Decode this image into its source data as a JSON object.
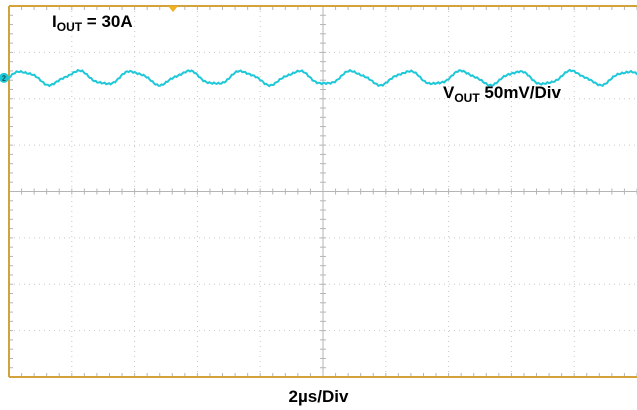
{
  "chart_data": {
    "type": "line",
    "title": "",
    "xlabel": "2µs/Div",
    "ylabel": "",
    "grid": true,
    "grid_divisions": {
      "x": 10,
      "y": 8
    },
    "channel_marker": "2",
    "colors": {
      "grid": "#c7c7c7",
      "trace": "#1ec8d8",
      "frame": "#d4a23a",
      "trigger": "#f0b020"
    },
    "annotations": [
      {
        "id": "iout",
        "text_main": "I",
        "text_sub": "OUT",
        "text_rest": " = 30A"
      },
      {
        "id": "vout",
        "text_main": "V",
        "text_sub": "OUT",
        "text_rest": " 50mV/Div"
      }
    ],
    "series": [
      {
        "x_unit": "µs",
        "y_unit": "mV",
        "offset_div": 0.85,
        "ripple_period_us": 1.75,
        "ripple_amplitude_mV": 7,
        "values": [
          {
            "x": 0.0,
            "y": 0
          },
          {
            "x": 0.44,
            "y": 7
          },
          {
            "x": 0.88,
            "y": 0
          },
          {
            "x": 1.31,
            "y": -7
          },
          {
            "x": 1.75,
            "y": 0
          },
          {
            "x": 2.19,
            "y": 7
          },
          {
            "x": 2.63,
            "y": 0
          },
          {
            "x": 3.06,
            "y": -7
          },
          {
            "x": 3.5,
            "y": 0
          },
          {
            "x": 3.94,
            "y": 7
          },
          {
            "x": 4.38,
            "y": 0
          },
          {
            "x": 4.81,
            "y": -7
          },
          {
            "x": 5.25,
            "y": 0
          },
          {
            "x": 5.69,
            "y": 7
          },
          {
            "x": 6.13,
            "y": 0
          },
          {
            "x": 6.56,
            "y": -7
          },
          {
            "x": 7.0,
            "y": 0
          },
          {
            "x": 7.44,
            "y": 7
          },
          {
            "x": 7.88,
            "y": 0
          },
          {
            "x": 8.31,
            "y": -7
          },
          {
            "x": 8.75,
            "y": 0
          },
          {
            "x": 9.19,
            "y": 7
          },
          {
            "x": 9.63,
            "y": 0
          },
          {
            "x": 10.06,
            "y": -7
          },
          {
            "x": 10.5,
            "y": 0
          },
          {
            "x": 10.94,
            "y": 7
          },
          {
            "x": 11.38,
            "y": 0
          },
          {
            "x": 11.81,
            "y": -7
          },
          {
            "x": 12.25,
            "y": 0
          },
          {
            "x": 12.69,
            "y": 7
          },
          {
            "x": 13.13,
            "y": 0
          },
          {
            "x": 13.56,
            "y": -7
          },
          {
            "x": 14.0,
            "y": 0
          },
          {
            "x": 14.44,
            "y": 7
          },
          {
            "x": 14.88,
            "y": 0
          },
          {
            "x": 15.31,
            "y": -7
          },
          {
            "x": 15.75,
            "y": 0
          },
          {
            "x": 16.19,
            "y": 7
          },
          {
            "x": 16.63,
            "y": 0
          },
          {
            "x": 17.06,
            "y": -7
          },
          {
            "x": 17.5,
            "y": 0
          },
          {
            "x": 17.94,
            "y": 7
          },
          {
            "x": 18.38,
            "y": 0
          },
          {
            "x": 18.81,
            "y": -7
          },
          {
            "x": 19.25,
            "y": 0
          },
          {
            "x": 19.69,
            "y": 7
          },
          {
            "x": 20.0,
            "y": 1
          }
        ]
      }
    ]
  }
}
